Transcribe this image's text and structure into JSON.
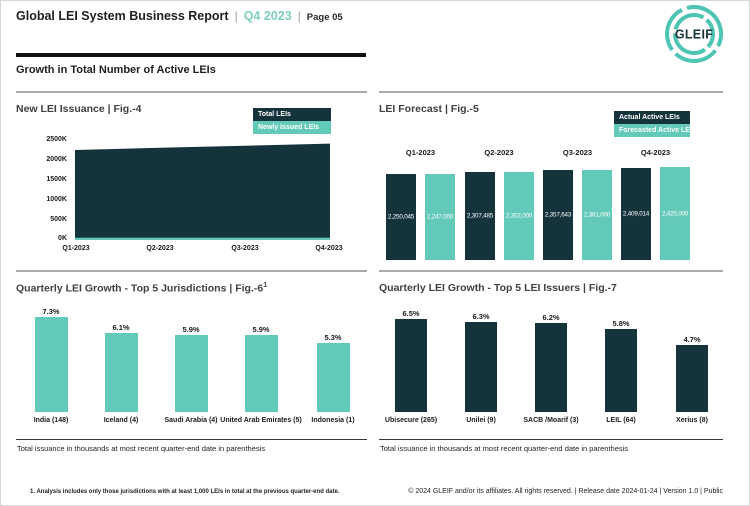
{
  "header": {
    "title": "Global LEI System Business Report",
    "separator": "|",
    "period": "Q4 2023",
    "page": "Page 05",
    "logo_text": "GLEIF"
  },
  "section_title": "Growth in Total Number of Active LEIs",
  "colors": {
    "dark": "#14333B",
    "teal": "#63C9B8",
    "header_teal": "#7FCFC0",
    "logo_teal": "#4EC4B2",
    "line_gray": "#ABABAB"
  },
  "chart_data": [
    {
      "id": "fig4",
      "type": "area",
      "title": "New LEI Issuance | Fig.-4",
      "x": [
        "Q1-2023",
        "Q2-2023",
        "Q3-2023",
        "Q4-2023"
      ],
      "series": [
        {
          "name": "Total LEIs",
          "color": "#14333B",
          "values": [
            2250045,
            2307485,
            2357643,
            2409014
          ]
        },
        {
          "name": "Newly Issued LEIs",
          "color": "#63C9B8",
          "values": [
            57000,
            57000,
            57000,
            57000
          ]
        }
      ],
      "ylim": [
        0,
        2500000
      ],
      "yticks": [
        "0K",
        "500K",
        "1000K",
        "1500K",
        "2000K",
        "2500K"
      ],
      "legend_position": "top-right",
      "grid": false
    },
    {
      "id": "fig5",
      "type": "bar",
      "title": "LEI Forecast | Fig.-5",
      "categories": [
        "Q1-2023",
        "Q2-2023",
        "Q3-2023",
        "Q4-2023"
      ],
      "series": [
        {
          "name": "Actual Active LEIs",
          "color": "#14333B",
          "values": [
            2250045,
            2307485,
            2357643,
            2409014
          ],
          "labels": [
            "2,250,045",
            "2,307,485",
            "2,357,643",
            "2,409,014"
          ]
        },
        {
          "name": "Forecasted Active LEIs",
          "color": "#63C9B8",
          "values": [
            2247000,
            2302000,
            2361000,
            2425000
          ],
          "labels": [
            "2,247,000",
            "2,302,000",
            "2,361,000",
            "2,425,000"
          ]
        }
      ],
      "legend_position": "top-right",
      "grid": false
    },
    {
      "id": "fig6",
      "type": "bar",
      "title": "Quarterly LEI Growth - Top 5 Jurisdictions | Fig.-6",
      "title_sup": "1",
      "categories": [
        "India (148)",
        "Iceland (4)",
        "Saudi Arabia (4)",
        "United Arab Emirates (5)",
        "Indonesia (1)"
      ],
      "values": [
        7.3,
        6.1,
        5.9,
        5.9,
        5.3
      ],
      "labels": [
        "7.3%",
        "6.1%",
        "5.9%",
        "5.9%",
        "5.3%"
      ],
      "bar_color": "#63C9B8",
      "note": "Total issuance in thousands at most recent quarter-end date in parenthesis",
      "grid": false
    },
    {
      "id": "fig7",
      "type": "bar",
      "title": "Quarterly LEI Growth - Top 5 LEI Issuers | Fig.-7",
      "categories": [
        "Ubisecure (265)",
        "Unilei (9)",
        "SACB /Moarif (3)",
        "LEIL (64)",
        "Xerius (8)"
      ],
      "values": [
        6.5,
        6.3,
        6.2,
        5.8,
        4.7
      ],
      "labels": [
        "6.5%",
        "6.3%",
        "6.2%",
        "5.8%",
        "4.7%"
      ],
      "bar_color": "#14333B",
      "note": "Total issuance in thousands at most recent quarter-end date in parenthesis",
      "grid": false
    }
  ],
  "footer": {
    "footnote": "1. Analysis includes only those jurisdictions with at least 1,000 LEIs in total at the previous quarter-end date.",
    "copyright": "© 2024 GLEIF and/or its affiliates. All rights reserved.  | Release date 2024-01-24 | Version 1.0 | Public"
  }
}
